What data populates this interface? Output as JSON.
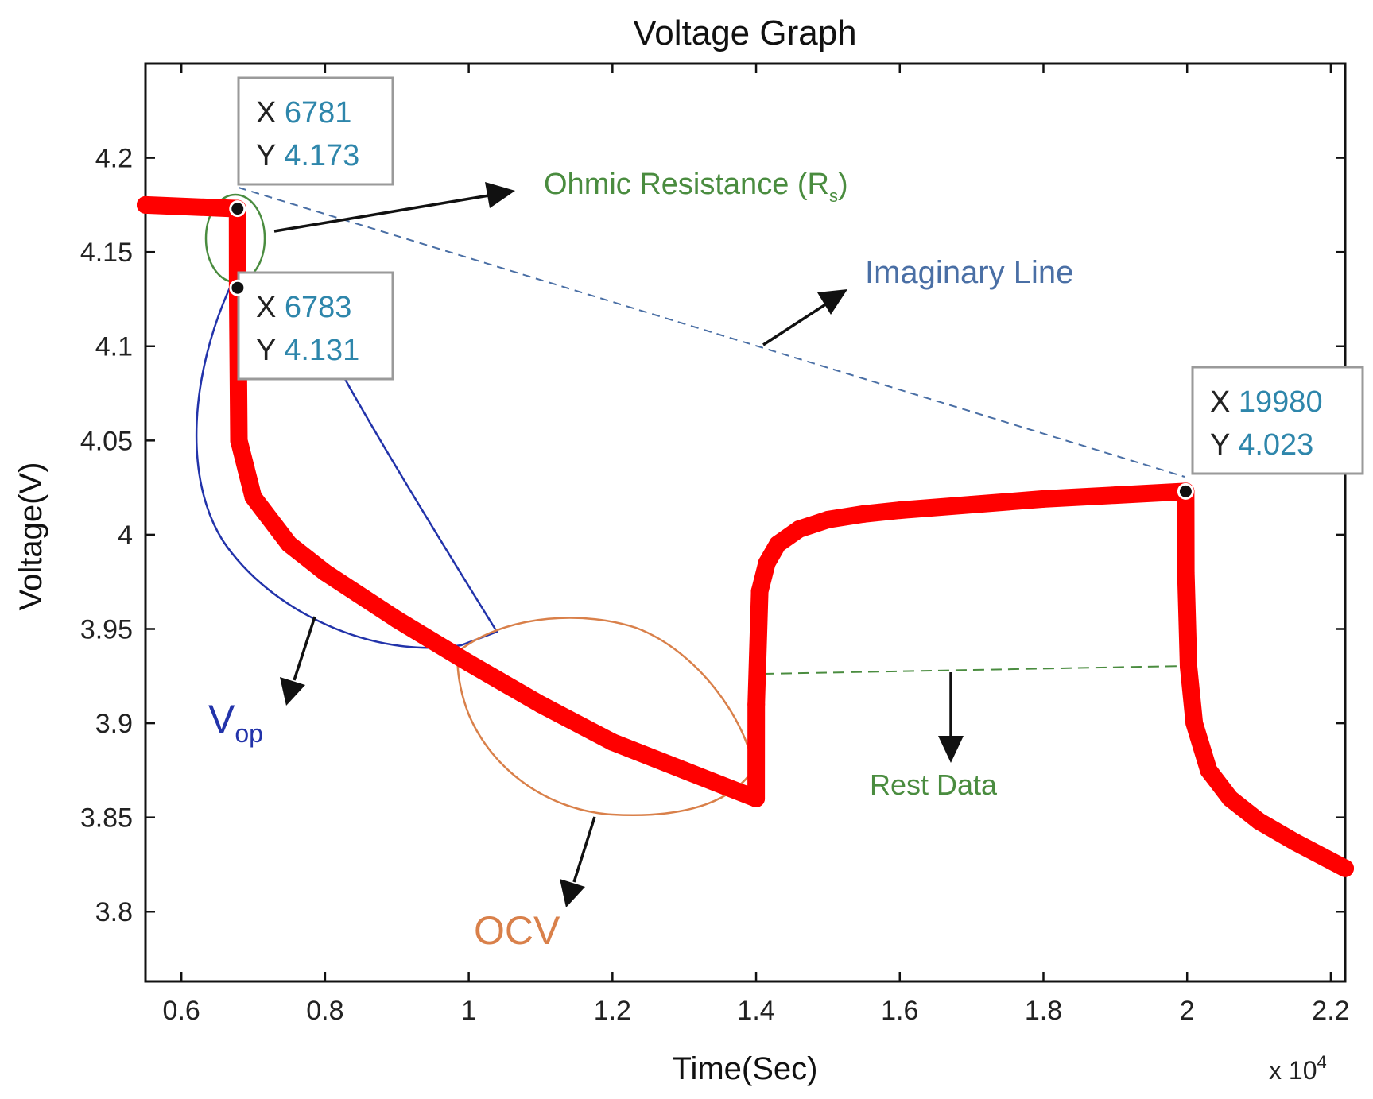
{
  "chart_data": {
    "type": "line",
    "title": "Voltage Graph",
    "xlabel": "Time(Sec)",
    "ylabel": "Voltage(V)",
    "x_multiplier": "x 10",
    "x_multiplier_exp": "4",
    "xlim": [
      5500,
      22200
    ],
    "ylim": [
      3.763,
      4.25
    ],
    "xticks": [
      6000,
      8000,
      10000,
      12000,
      14000,
      16000,
      18000,
      20000,
      22000
    ],
    "xtick_labels": [
      "0.6",
      "0.8",
      "1",
      "1.2",
      "1.4",
      "1.6",
      "1.8",
      "2",
      "2.2"
    ],
    "yticks": [
      3.8,
      3.85,
      3.9,
      3.95,
      4.0,
      4.05,
      4.1,
      4.15,
      4.2
    ],
    "ytick_labels": [
      "3.8",
      "3.85",
      "3.9",
      "3.95",
      "4",
      "4.05",
      "4.1",
      "4.15",
      "4.2"
    ],
    "grid": false,
    "series": [
      {
        "color": "#ff0000",
        "x": [
          5500,
          6781,
          6783,
          6800,
          6900,
          7000,
          7500,
          8000,
          9000,
          10000,
          11000,
          12000,
          13000,
          14000,
          14002,
          14050,
          14150,
          14300,
          14600,
          15000,
          15500,
          16000,
          17000,
          18000,
          19000,
          19980,
          19982,
          20020,
          20100,
          20300,
          20600,
          21000,
          21500,
          22200
        ],
        "y": [
          4.175,
          4.173,
          4.131,
          4.05,
          4.035,
          4.02,
          3.995,
          3.98,
          3.955,
          3.932,
          3.91,
          3.89,
          3.875,
          3.86,
          3.91,
          3.97,
          3.985,
          3.995,
          4.003,
          4.008,
          4.011,
          4.013,
          4.016,
          4.019,
          4.021,
          4.023,
          3.98,
          3.93,
          3.9,
          3.875,
          3.86,
          3.848,
          3.837,
          3.823
        ]
      }
    ],
    "datatips": [
      {
        "x_key": "X",
        "x_value": "6781",
        "y_key": "Y",
        "y_value": "4.173",
        "x": 6781,
        "y": 4.173
      },
      {
        "x_key": "X",
        "x_value": "6783",
        "y_key": "Y",
        "y_value": "4.131",
        "x": 6783,
        "y": 4.131
      },
      {
        "x_key": "X",
        "x_value": "19980",
        "y_key": "Y",
        "y_value": "4.023",
        "x": 19980,
        "y": 4.023
      }
    ],
    "annotations": {
      "ohmic_label": "Ohmic Resistance (R",
      "ohmic_sub": "s",
      "ohmic_close": ")",
      "imaginary_label": "Imaginary Line",
      "vop_label": "V",
      "vop_sub": "op",
      "ocv_label": "OCV",
      "rest_label": "Rest Data"
    },
    "colors": {
      "series": "#ff0000",
      "ohmic": "#4a8c3f",
      "imaginary": "#4a6fa5",
      "vop": "#2233aa",
      "ocv": "#d9804a",
      "rest": "#4a8c3f",
      "datatip_value": "#2e86ab"
    }
  }
}
